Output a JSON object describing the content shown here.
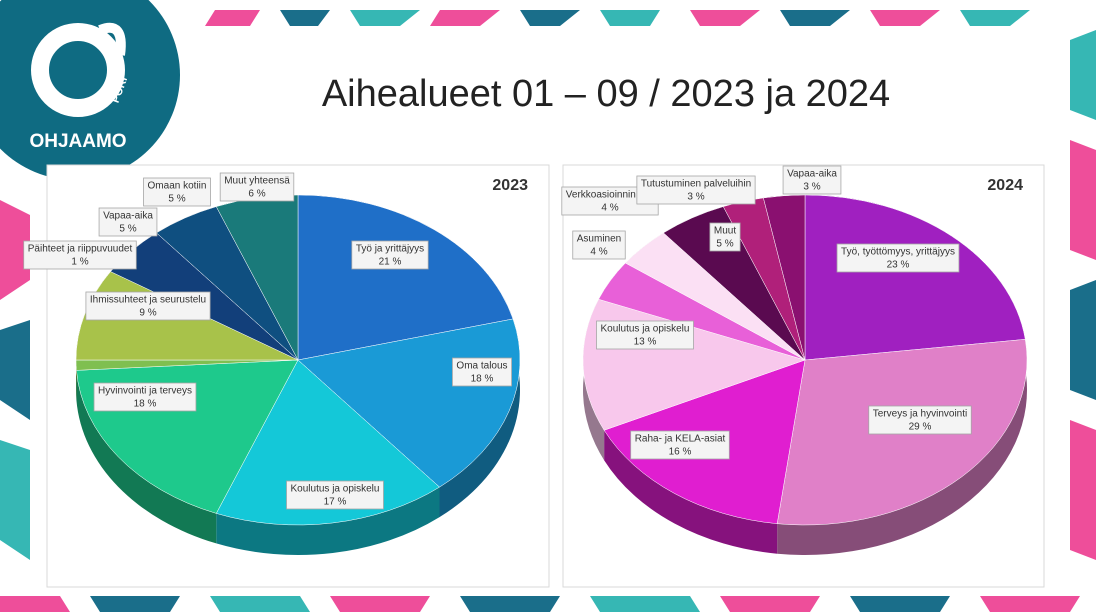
{
  "title": "Aihealueet 01 – 09 / 2023 ja 2024",
  "logo": {
    "city": "PORI",
    "brand": "OHJAAMO"
  },
  "chart_data": [
    {
      "type": "pie",
      "title": "2023",
      "categories": [
        "Työ ja yrittäjyys",
        "Oma talous",
        "Koulutus ja opiskelu",
        "Hyvinvointi ja terveys",
        "Päihteet ja riippuvuudet",
        "Ihmissuhteet ja seurustelu",
        "Vapaa-aika",
        "Omaan kotiin",
        "Muut yhteensä"
      ],
      "values": [
        21,
        18,
        17,
        18,
        1,
        9,
        5,
        5,
        6
      ],
      "value_labels": [
        "21 %",
        "18 %",
        "17 %",
        "18 %",
        "1 %",
        "9 %",
        "5 %",
        "5 %",
        "6 %"
      ],
      "colors": [
        "#1f6fc8",
        "#1a9ad6",
        "#14c8d8",
        "#1ec98c",
        "#7fbf50",
        "#a8c24a",
        "#123f7a",
        "#0f4f80",
        "#1a7a7a"
      ]
    },
    {
      "type": "pie",
      "title": "2024",
      "categories": [
        "Työ, työttömyys, yrittäjyys",
        "Terveys ja hyvinvointi",
        "Raha- ja KELA-asiat",
        "Koulutus ja opiskelu",
        "Asuminen",
        "Verkkoasioinnin tuki",
        "Muut",
        "Tutustuminen palveluihin",
        "Vapaa-aika"
      ],
      "values": [
        23,
        29,
        16,
        13,
        4,
        4,
        5,
        3,
        3
      ],
      "value_labels": [
        "23 %",
        "29 %",
        "16 %",
        "13 %",
        "4 %",
        "4 %",
        "5 %",
        "3 %",
        "3 %"
      ],
      "colors": [
        "#a020c0",
        "#e080c8",
        "#e01ed0",
        "#f8c8ec",
        "#e860d8",
        "#fbe0f4",
        "#5a0a50",
        "#b0207a",
        "#8a1070"
      ]
    }
  ]
}
